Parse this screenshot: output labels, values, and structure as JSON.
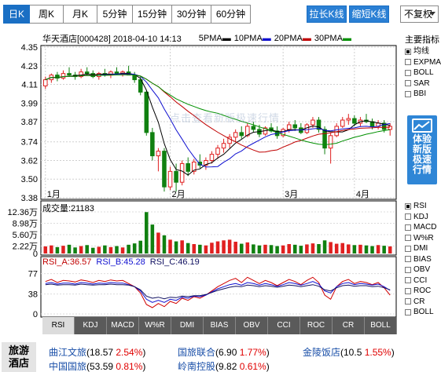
{
  "periods": [
    {
      "label": "日K",
      "active": true
    },
    {
      "label": "周K",
      "active": false
    },
    {
      "label": "月K",
      "active": false
    },
    {
      "label": "5分钟",
      "active": false
    },
    {
      "label": "15分钟",
      "active": false
    },
    {
      "label": "30分钟",
      "active": false
    },
    {
      "label": "60分钟",
      "active": false
    }
  ],
  "controls": {
    "lengthen": "拉长K线",
    "shorten": "缩短K线",
    "fq": "不复权"
  },
  "title": {
    "stock": "华天酒店[000428] 2018-04-10 14:13",
    "ma": [
      "5PMA",
      "10PMA",
      "20PMA",
      "30PMA"
    ]
  },
  "colors": {
    "up": "#e02020",
    "down": "#108010",
    "ma5": "#000000",
    "ma10": "#1010d0",
    "ma20": "#c00000",
    "ma30": "#009000",
    "accent": "#2a7fd4"
  },
  "right_panel": {
    "title": "主要指标",
    "main_indicators": [
      {
        "label": "均线",
        "checked": true
      },
      {
        "label": "EXPMA",
        "checked": false
      },
      {
        "label": "BOLL",
        "checked": false
      },
      {
        "label": "SAR",
        "checked": false
      },
      {
        "label": "BBI",
        "checked": false
      }
    ],
    "promo": [
      "体验",
      "新版",
      "极速",
      "行情"
    ],
    "sub_indicators": [
      {
        "label": "RSI",
        "checked": true
      },
      {
        "label": "KDJ",
        "checked": false
      },
      {
        "label": "MACD",
        "checked": false
      },
      {
        "label": "W%R",
        "checked": false
      },
      {
        "label": "DMI",
        "checked": false
      },
      {
        "label": "BIAS",
        "checked": false
      },
      {
        "label": "OBV",
        "checked": false
      },
      {
        "label": "CCI",
        "checked": false
      },
      {
        "label": "ROC",
        "checked": false
      },
      {
        "label": "CR",
        "checked": false
      },
      {
        "label": "BOLL",
        "checked": false
      }
    ]
  },
  "watermark": "点击查看新版极速行情",
  "price_axis": [
    "4.35",
    "4.23",
    "4.11",
    "3.99",
    "3.87",
    "3.74",
    "3.62",
    "3.50",
    "3.38"
  ],
  "month_labels": [
    "1月",
    "2月",
    "3月",
    "4月"
  ],
  "volume": {
    "title": "成交量:21183",
    "axis": [
      "12.36万",
      "8.98万",
      "5.60万",
      "2.22万",
      "0"
    ]
  },
  "rsi": {
    "a": "RSI_A:36.57",
    "b": "RSI_B:45.28",
    "c": "RSI_C:46.19",
    "axis": [
      "77",
      "38",
      "0"
    ]
  },
  "indicator_tabs": [
    "RSI",
    "KDJ",
    "MACD",
    "W%R",
    "DMI",
    "BIAS",
    "OBV",
    "CCI",
    "ROC",
    "CR",
    "BOLL"
  ],
  "related": {
    "label": "旅游酒店",
    "stocks": [
      {
        "name": "曲江文旅",
        "price": "(18.57",
        "pct": "2.54%",
        "close": ")"
      },
      {
        "name": "国旅联合",
        "price": "(6.90",
        "pct": "1.77%",
        "close": ")"
      },
      {
        "name": "金陵饭店",
        "price": "(10.5",
        "pct": "1.55%",
        "close": ")"
      },
      {
        "name": "中国国旅",
        "price": "(53.59",
        "pct": "0.81%",
        "close": ")"
      },
      {
        "name": "岭南控股",
        "price": "(9.82",
        "pct": "0.61%",
        "close": ")"
      }
    ]
  },
  "chart_data": {
    "type": "candlestick",
    "candles": [
      [
        4.1,
        4.16,
        4.08,
        4.14
      ],
      [
        4.14,
        4.18,
        4.12,
        4.17
      ],
      [
        4.17,
        4.19,
        4.13,
        4.15
      ],
      [
        4.15,
        4.2,
        4.14,
        4.18
      ],
      [
        4.18,
        4.22,
        4.16,
        4.17
      ],
      [
        4.17,
        4.19,
        4.14,
        4.16
      ],
      [
        4.16,
        4.21,
        4.15,
        4.19
      ],
      [
        4.19,
        4.22,
        4.17,
        4.18
      ],
      [
        4.18,
        4.2,
        4.15,
        4.16
      ],
      [
        4.16,
        4.19,
        4.14,
        4.18
      ],
      [
        4.18,
        4.21,
        4.16,
        4.17
      ],
      [
        4.17,
        4.2,
        4.15,
        4.19
      ],
      [
        4.19,
        4.22,
        4.17,
        4.18
      ],
      [
        4.18,
        4.2,
        4.16,
        4.19
      ],
      [
        4.19,
        4.23,
        4.17,
        4.17
      ],
      [
        4.17,
        4.19,
        4.12,
        4.14
      ],
      [
        4.14,
        4.16,
        4.04,
        4.06
      ],
      [
        4.06,
        4.07,
        3.78,
        3.8
      ],
      [
        3.8,
        3.83,
        3.62,
        3.65
      ],
      [
        3.65,
        3.7,
        3.55,
        3.68
      ],
      [
        3.68,
        3.7,
        3.42,
        3.45
      ],
      [
        3.45,
        3.58,
        3.43,
        3.55
      ],
      [
        3.55,
        3.6,
        3.42,
        3.48
      ],
      [
        3.48,
        3.62,
        3.46,
        3.6
      ],
      [
        3.6,
        3.64,
        3.52,
        3.55
      ],
      [
        3.55,
        3.63,
        3.53,
        3.61
      ],
      [
        3.61,
        3.66,
        3.57,
        3.59
      ],
      [
        3.59,
        3.64,
        3.56,
        3.62
      ],
      [
        3.62,
        3.68,
        3.6,
        3.66
      ],
      [
        3.66,
        3.72,
        3.63,
        3.7
      ],
      [
        3.7,
        3.76,
        3.67,
        3.73
      ],
      [
        3.73,
        3.79,
        3.7,
        3.77
      ],
      [
        3.77,
        3.82,
        3.74,
        3.8
      ],
      [
        3.8,
        3.84,
        3.76,
        3.78
      ],
      [
        3.78,
        3.86,
        3.77,
        3.84
      ],
      [
        3.84,
        3.87,
        3.8,
        3.82
      ],
      [
        3.82,
        3.85,
        3.77,
        3.79
      ],
      [
        3.79,
        3.84,
        3.78,
        3.83
      ],
      [
        3.83,
        3.86,
        3.8,
        3.81
      ],
      [
        3.81,
        3.84,
        3.76,
        3.78
      ],
      [
        3.78,
        3.83,
        3.77,
        3.82
      ],
      [
        3.82,
        3.87,
        3.8,
        3.85
      ],
      [
        3.85,
        3.88,
        3.81,
        3.83
      ],
      [
        3.83,
        3.86,
        3.79,
        3.8
      ],
      [
        3.8,
        3.86,
        3.79,
        3.85
      ],
      [
        3.85,
        3.9,
        3.83,
        3.88
      ],
      [
        3.88,
        3.9,
        3.8,
        3.82
      ],
      [
        3.82,
        3.84,
        3.66,
        3.7
      ],
      [
        3.7,
        3.8,
        3.6,
        3.78
      ],
      [
        3.78,
        3.86,
        3.77,
        3.84
      ],
      [
        3.84,
        3.9,
        3.83,
        3.88
      ],
      [
        3.88,
        3.92,
        3.85,
        3.89
      ],
      [
        3.89,
        3.91,
        3.84,
        3.86
      ],
      [
        3.86,
        3.9,
        3.84,
        3.88
      ],
      [
        3.88,
        3.92,
        3.86,
        3.87
      ],
      [
        3.87,
        3.89,
        3.82,
        3.84
      ],
      [
        3.84,
        3.88,
        3.82,
        3.86
      ],
      [
        3.86,
        3.88,
        3.8,
        3.82
      ],
      [
        3.82,
        3.86,
        3.78,
        3.84
      ]
    ],
    "volume": [
      2.1,
      2.4,
      1.9,
      2.3,
      2.6,
      1.8,
      2.2,
      2.5,
      1.7,
      2.0,
      2.4,
      1.9,
      2.2,
      1.8,
      2.6,
      3.0,
      3.8,
      12.3,
      8.6,
      6.2,
      5.4,
      4.1,
      3.6,
      3.9,
      3.1,
      2.8,
      2.6,
      2.4,
      3.2,
      3.6,
      3.9,
      4.1,
      3.5,
      2.9,
      3.3,
      2.7,
      2.4,
      2.6,
      2.5,
      2.2,
      2.4,
      2.8,
      2.6,
      2.3,
      2.7,
      3.0,
      2.8,
      3.9,
      3.4,
      2.9,
      3.1,
      2.7,
      2.5,
      2.6,
      2.4,
      2.2,
      2.5,
      2.3,
      2.1
    ],
    "rsi_a": [
      62,
      66,
      60,
      64,
      63,
      61,
      65,
      63,
      60,
      64,
      62,
      65,
      63,
      64,
      58,
      52,
      40,
      18,
      12,
      20,
      14,
      24,
      20,
      30,
      26,
      33,
      30,
      36,
      44,
      52,
      58,
      64,
      68,
      60,
      70,
      64,
      58,
      64,
      60,
      54,
      60,
      66,
      62,
      56,
      64,
      70,
      60,
      36,
      28,
      52,
      62,
      66,
      58,
      62,
      60,
      56,
      60,
      50,
      36
    ],
    "rsi_b": [
      58,
      60,
      57,
      59,
      59,
      57,
      60,
      59,
      57,
      59,
      58,
      60,
      59,
      59,
      56,
      52,
      44,
      28,
      22,
      26,
      22,
      28,
      26,
      32,
      30,
      34,
      33,
      36,
      42,
      48,
      52,
      56,
      58,
      55,
      60,
      58,
      55,
      58,
      56,
      53,
      56,
      60,
      58,
      55,
      58,
      62,
      57,
      44,
      40,
      52,
      58,
      60,
      56,
      58,
      57,
      55,
      57,
      52,
      45
    ],
    "rsi_c": [
      56,
      57,
      55,
      56,
      56,
      55,
      57,
      56,
      55,
      56,
      56,
      57,
      56,
      56,
      55,
      52,
      46,
      34,
      30,
      32,
      29,
      32,
      31,
      34,
      33,
      35,
      35,
      37,
      41,
      45,
      48,
      51,
      53,
      52,
      55,
      54,
      52,
      54,
      53,
      51,
      53,
      55,
      54,
      52,
      54,
      56,
      53,
      46,
      44,
      50,
      54,
      55,
      53,
      54,
      54,
      52,
      53,
      50,
      46
    ]
  }
}
